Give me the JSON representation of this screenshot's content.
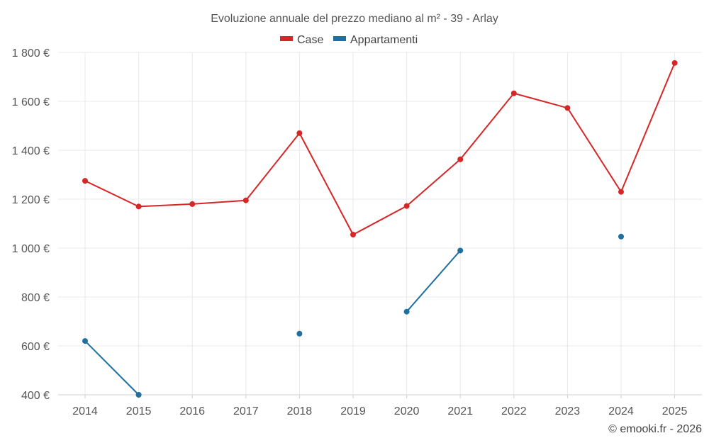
{
  "chart_data": {
    "type": "line",
    "title": "Evoluzione annuale del prezzo mediano al m² - 39 - Arlay",
    "categories": [
      "2014",
      "2015",
      "2016",
      "2017",
      "2018",
      "2019",
      "2020",
      "2021",
      "2022",
      "2023",
      "2024",
      "2025"
    ],
    "series": [
      {
        "name": "Case",
        "color": "#d62728",
        "values": [
          1275,
          1170,
          1180,
          1195,
          1470,
          1055,
          1172,
          1363,
          1633,
          1573,
          1230,
          1757
        ]
      },
      {
        "name": "Appartamenti",
        "color": "#1f6f9f",
        "values": [
          620,
          400,
          null,
          null,
          650,
          null,
          740,
          990,
          null,
          null,
          1047,
          null
        ]
      }
    ],
    "y_ticks": [
      "400 €",
      "600 €",
      "800 €",
      "1 000 €",
      "1 200 €",
      "1 400 €",
      "1 600 €",
      "1 800 €"
    ],
    "ylim": [
      400,
      1800
    ],
    "y_tick_values": [
      400,
      600,
      800,
      1000,
      1200,
      1400,
      1600,
      1800
    ],
    "xlabel": "",
    "ylabel": "",
    "legend_position": "top-center",
    "grid": true
  },
  "credit": "© emooki.fr - 2026"
}
